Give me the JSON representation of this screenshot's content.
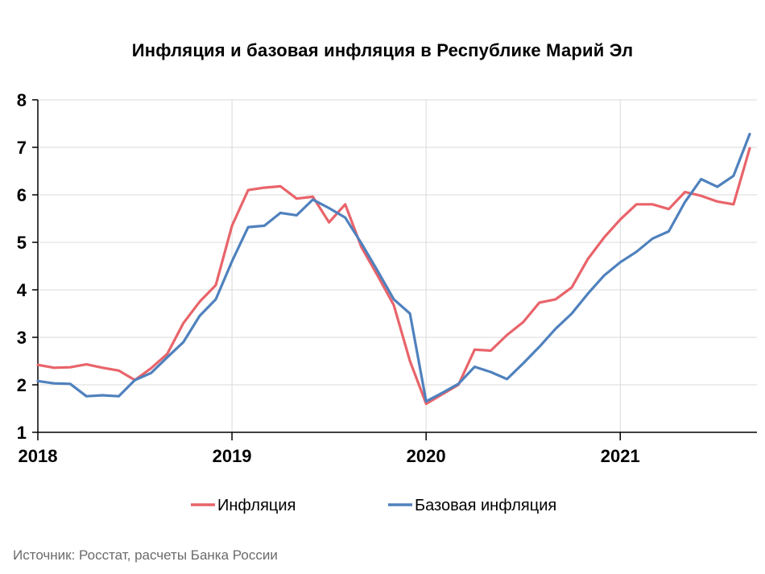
{
  "chart_data": {
    "type": "line",
    "title": "Инфляция и базовая инфляция в Республике Марий Эл",
    "xlabel": "",
    "ylabel": "",
    "ylim": [
      1,
      8
    ],
    "yticks": [
      1,
      2,
      3,
      4,
      5,
      6,
      7,
      8
    ],
    "x_range": [
      "2018-01",
      "2021-09"
    ],
    "x_tick_labels": [
      {
        "label": "2018",
        "x": "2018-01"
      },
      {
        "label": "2019",
        "x": "2019-01"
      },
      {
        "label": "2020",
        "x": "2020-01"
      },
      {
        "label": "2021",
        "x": "2021-01"
      }
    ],
    "grid": true,
    "legend": "bottom",
    "x": [
      "2018-01",
      "2018-02",
      "2018-03",
      "2018-04",
      "2018-05",
      "2018-06",
      "2018-07",
      "2018-08",
      "2018-09",
      "2018-10",
      "2018-11",
      "2018-12",
      "2019-01",
      "2019-02",
      "2019-03",
      "2019-04",
      "2019-05",
      "2019-06",
      "2019-07",
      "2019-08",
      "2019-09",
      "2019-10",
      "2019-11",
      "2019-12",
      "2020-01",
      "2020-02",
      "2020-03",
      "2020-04",
      "2020-05",
      "2020-06",
      "2020-07",
      "2020-08",
      "2020-09",
      "2020-10",
      "2020-11",
      "2020-12",
      "2021-01",
      "2021-02",
      "2021-03",
      "2021-04",
      "2021-05",
      "2021-06",
      "2021-07",
      "2021-08",
      "2021-09"
    ],
    "series": [
      {
        "name": "Инфляция",
        "color": "#e8646a",
        "values": [
          2.42,
          2.36,
          2.37,
          2.43,
          2.36,
          2.3,
          2.1,
          2.35,
          2.65,
          3.3,
          3.75,
          4.1,
          5.35,
          6.1,
          6.15,
          6.18,
          5.92,
          5.96,
          5.42,
          5.8,
          4.9,
          4.3,
          3.68,
          2.5,
          1.6,
          1.8,
          2.0,
          2.74,
          2.72,
          3.05,
          3.32,
          3.73,
          3.8,
          4.05,
          4.65,
          5.1,
          5.48,
          5.8,
          5.8,
          5.7,
          6.06,
          5.98,
          5.86,
          5.8,
          6.98
        ]
      },
      {
        "name": "Базовая инфляция",
        "color": "#4f81bd",
        "values": [
          2.08,
          2.03,
          2.02,
          1.76,
          1.78,
          1.76,
          2.1,
          2.25,
          2.58,
          2.9,
          3.45,
          3.8,
          4.6,
          5.32,
          5.35,
          5.62,
          5.57,
          5.9,
          5.72,
          5.52,
          4.98,
          4.4,
          3.8,
          3.5,
          1.65,
          1.83,
          2.02,
          2.38,
          2.27,
          2.12,
          2.45,
          2.8,
          3.18,
          3.5,
          3.92,
          4.3,
          4.58,
          4.8,
          5.08,
          5.23,
          5.85,
          6.33,
          6.17,
          6.4,
          7.28
        ]
      }
    ]
  },
  "source": "Источник: Росстат, расчеты Банка России"
}
